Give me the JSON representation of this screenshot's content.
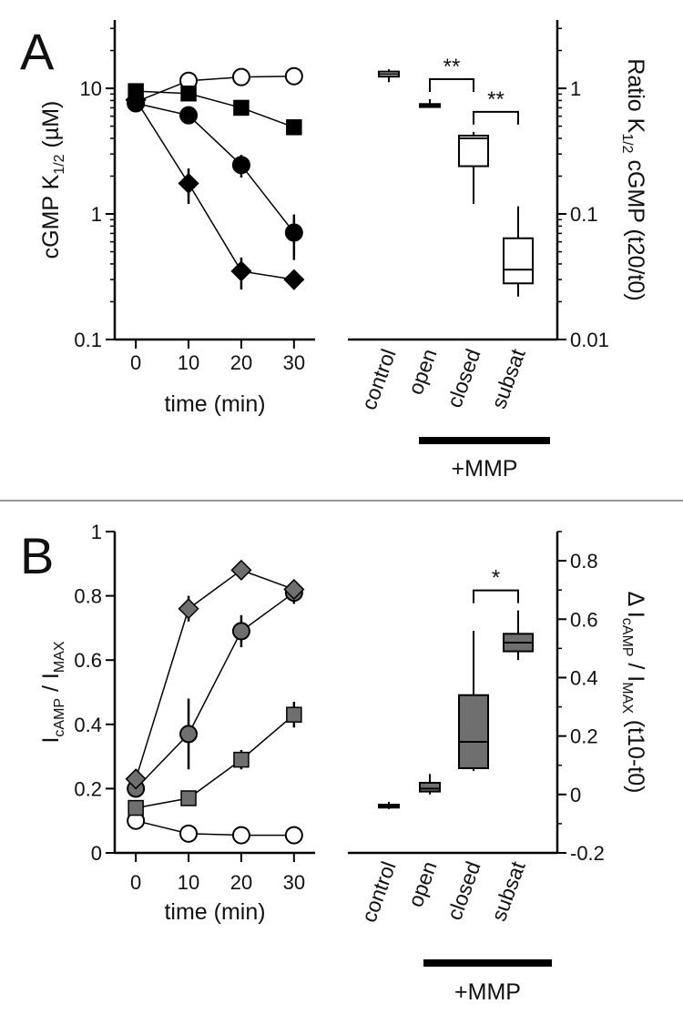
{
  "panels": [
    {
      "letter": "A",
      "kinetics": {
        "type": "line",
        "ylabel_main": "cGMP K",
        "ylabel_sub": "1/2",
        "ylabel_unit": " (µM)",
        "xlabel": "time (min)",
        "yscale": "log",
        "ylim": [
          0.1,
          35
        ],
        "xlim": [
          -4,
          34
        ],
        "yticks": [
          0.1,
          1,
          10
        ],
        "ytick_labels": [
          "0.1",
          "1",
          "10"
        ],
        "xticks": [
          0,
          10,
          20,
          30
        ],
        "xtick_labels": [
          "0",
          "10",
          "20",
          "30"
        ],
        "grid": false,
        "legend": "none",
        "series": [
          {
            "marker": "circle-open",
            "x": [
              0,
              10,
              20,
              30
            ],
            "y": [
              7.8,
              11.5,
              12.3,
              12.5
            ],
            "err": [
              0.5,
              1.2,
              0.9,
              0.6
            ]
          },
          {
            "marker": "square",
            "x": [
              0,
              10,
              20,
              30
            ],
            "y": [
              9.5,
              9.1,
              7.0,
              4.9
            ],
            "err": [
              0.6,
              0.6,
              0.5,
              0.4
            ]
          },
          {
            "marker": "circle",
            "x": [
              0,
              10,
              20,
              30
            ],
            "y": [
              7.6,
              6.1,
              2.45,
              0.71
            ],
            "err": [
              0.5,
              0.9,
              0.5,
              0.28
            ]
          },
          {
            "marker": "diamond",
            "x": [
              0,
              10,
              20,
              30
            ],
            "y": [
              8.1,
              1.75,
              0.35,
              0.3
            ],
            "err": [
              0.5,
              0.55,
              0.1,
              0.05
            ]
          }
        ]
      },
      "summary": {
        "type": "box",
        "ylabel_main": "Ratio K",
        "ylabel_sub": "1/2",
        "ylabel_unit": " cGMP (t20/t0)",
        "yscale": "log",
        "ylim": [
          0.01,
          3.5
        ],
        "yticks": [
          0.01,
          0.1,
          1
        ],
        "ytick_labels": [
          "0.01",
          "0.1",
          "1"
        ],
        "categories": [
          "control",
          "open",
          "closed",
          "subsat"
        ],
        "group_label": "+MMP",
        "boxes": [
          {
            "min": 1.12,
            "q1": 1.24,
            "median": 1.3,
            "q3": 1.36,
            "max": 1.42
          },
          {
            "min": 0.7,
            "q1": 0.71,
            "median": 0.73,
            "q3": 0.75,
            "max": 0.82
          },
          {
            "min": 0.12,
            "q1": 0.24,
            "median": 0.4,
            "q3": 0.42,
            "max": 0.45
          },
          {
            "min": 0.022,
            "q1": 0.028,
            "median": 0.036,
            "q3": 0.064,
            "max": 0.115
          }
        ],
        "significance": [
          {
            "from": 1,
            "to": 2,
            "label": "**"
          },
          {
            "from": 2,
            "to": 3,
            "label": "**"
          }
        ]
      }
    },
    {
      "letter": "B",
      "kinetics": {
        "type": "line",
        "ylabel_main": "I",
        "ylabel_sub1": "cAMP",
        "ylabel_mid": " / I",
        "ylabel_sub2": "MAX",
        "xlabel": "time (min)",
        "yscale": "linear",
        "ylim": [
          0,
          1
        ],
        "xlim": [
          -4,
          34
        ],
        "yticks": [
          0,
          0.2,
          0.4,
          0.6,
          0.8,
          1
        ],
        "ytick_labels": [
          "0",
          "0.2",
          "0.4",
          "0.6",
          "0.8",
          "1"
        ],
        "xticks": [
          0,
          10,
          20,
          30
        ],
        "xtick_labels": [
          "0",
          "10",
          "20",
          "30"
        ],
        "grid": false,
        "legend": "none",
        "series": [
          {
            "marker": "circle-open",
            "x": [
              0,
              10,
              20,
              30
            ],
            "y": [
              0.1,
              0.06,
              0.055,
              0.055
            ],
            "err": [
              0.01,
              0.012,
              0.008,
              0.006
            ]
          },
          {
            "marker": "square-gray",
            "x": [
              0,
              10,
              20,
              30
            ],
            "y": [
              0.14,
              0.17,
              0.29,
              0.43
            ],
            "err": [
              0.02,
              0.02,
              0.03,
              0.04
            ]
          },
          {
            "marker": "circle-gray",
            "x": [
              0,
              10,
              20,
              30
            ],
            "y": [
              0.2,
              0.37,
              0.69,
              0.81
            ],
            "err": [
              0.025,
              0.11,
              0.05,
              0.035
            ]
          },
          {
            "marker": "diamond-gray",
            "x": [
              0,
              10,
              20,
              30
            ],
            "y": [
              0.23,
              0.76,
              0.88,
              0.82
            ],
            "err": [
              0.03,
              0.04,
              0.015,
              0.02
            ]
          }
        ]
      },
      "summary": {
        "type": "box",
        "ylabel_main": "Δ I",
        "ylabel_sub1": "cAMP",
        "ylabel_mid": " / I",
        "ylabel_sub2": "MAX",
        "ylabel_unit": " (t10-t0)",
        "yscale": "linear",
        "ylim": [
          -0.2,
          0.9
        ],
        "yticks": [
          -0.2,
          0,
          0.2,
          0.4,
          0.6,
          0.8
        ],
        "ytick_labels": [
          "-0.2",
          "0",
          "0.2",
          "0.4",
          "0.6",
          "0.8"
        ],
        "categories": [
          "control",
          "open",
          "closed",
          "subsat"
        ],
        "group_label": "+MMP",
        "boxes": [
          {
            "min": -0.05,
            "q1": -0.045,
            "median": -0.04,
            "q3": -0.035,
            "max": -0.025
          },
          {
            "min": 0.0,
            "q1": 0.01,
            "median": 0.02,
            "q3": 0.04,
            "max": 0.07
          },
          {
            "min": 0.08,
            "q1": 0.09,
            "median": 0.18,
            "q3": 0.34,
            "max": 0.56
          },
          {
            "min": 0.46,
            "q1": 0.49,
            "median": 0.52,
            "q3": 0.55,
            "max": 0.63
          }
        ],
        "significance": [
          {
            "from": 2,
            "to": 3,
            "label": "*"
          }
        ]
      }
    }
  ],
  "chart_data": [
    {
      "type": "line",
      "panel": "A",
      "title": "",
      "xlabel": "time (min)",
      "ylabel": "cGMP K1/2 (µM)",
      "yscale": "log",
      "ylim": [
        0.1,
        35
      ],
      "x": [
        0,
        10,
        20,
        30
      ],
      "series": [
        {
          "values": [
            7.8,
            11.5,
            12.3,
            12.5
          ]
        },
        {
          "values": [
            9.5,
            9.1,
            7.0,
            4.9
          ]
        },
        {
          "values": [
            7.6,
            6.1,
            2.45,
            0.71
          ]
        },
        {
          "values": [
            8.1,
            1.75,
            0.35,
            0.3
          ]
        }
      ]
    },
    {
      "type": "box",
      "panel": "A",
      "title": "",
      "ylabel": "Ratio K1/2 cGMP (t20/t0)",
      "yscale": "log",
      "ylim": [
        0.01,
        3.5
      ],
      "categories": [
        "control",
        "open",
        "closed",
        "subsat"
      ],
      "medians": [
        1.3,
        0.73,
        0.4,
        0.036
      ]
    },
    {
      "type": "line",
      "panel": "B",
      "title": "",
      "xlabel": "time (min)",
      "ylabel": "IcAMP / IMAX",
      "ylim": [
        0,
        1
      ],
      "x": [
        0,
        10,
        20,
        30
      ],
      "series": [
        {
          "values": [
            0.1,
            0.06,
            0.055,
            0.055
          ]
        },
        {
          "values": [
            0.14,
            0.17,
            0.29,
            0.43
          ]
        },
        {
          "values": [
            0.2,
            0.37,
            0.69,
            0.81
          ]
        },
        {
          "values": [
            0.23,
            0.76,
            0.88,
            0.82
          ]
        }
      ]
    },
    {
      "type": "box",
      "panel": "B",
      "title": "",
      "ylabel": "Δ IcAMP / IMAX (t10-t0)",
      "ylim": [
        -0.2,
        0.9
      ],
      "categories": [
        "control",
        "open",
        "closed",
        "subsat"
      ],
      "medians": [
        -0.04,
        0.02,
        0.18,
        0.52
      ]
    }
  ]
}
